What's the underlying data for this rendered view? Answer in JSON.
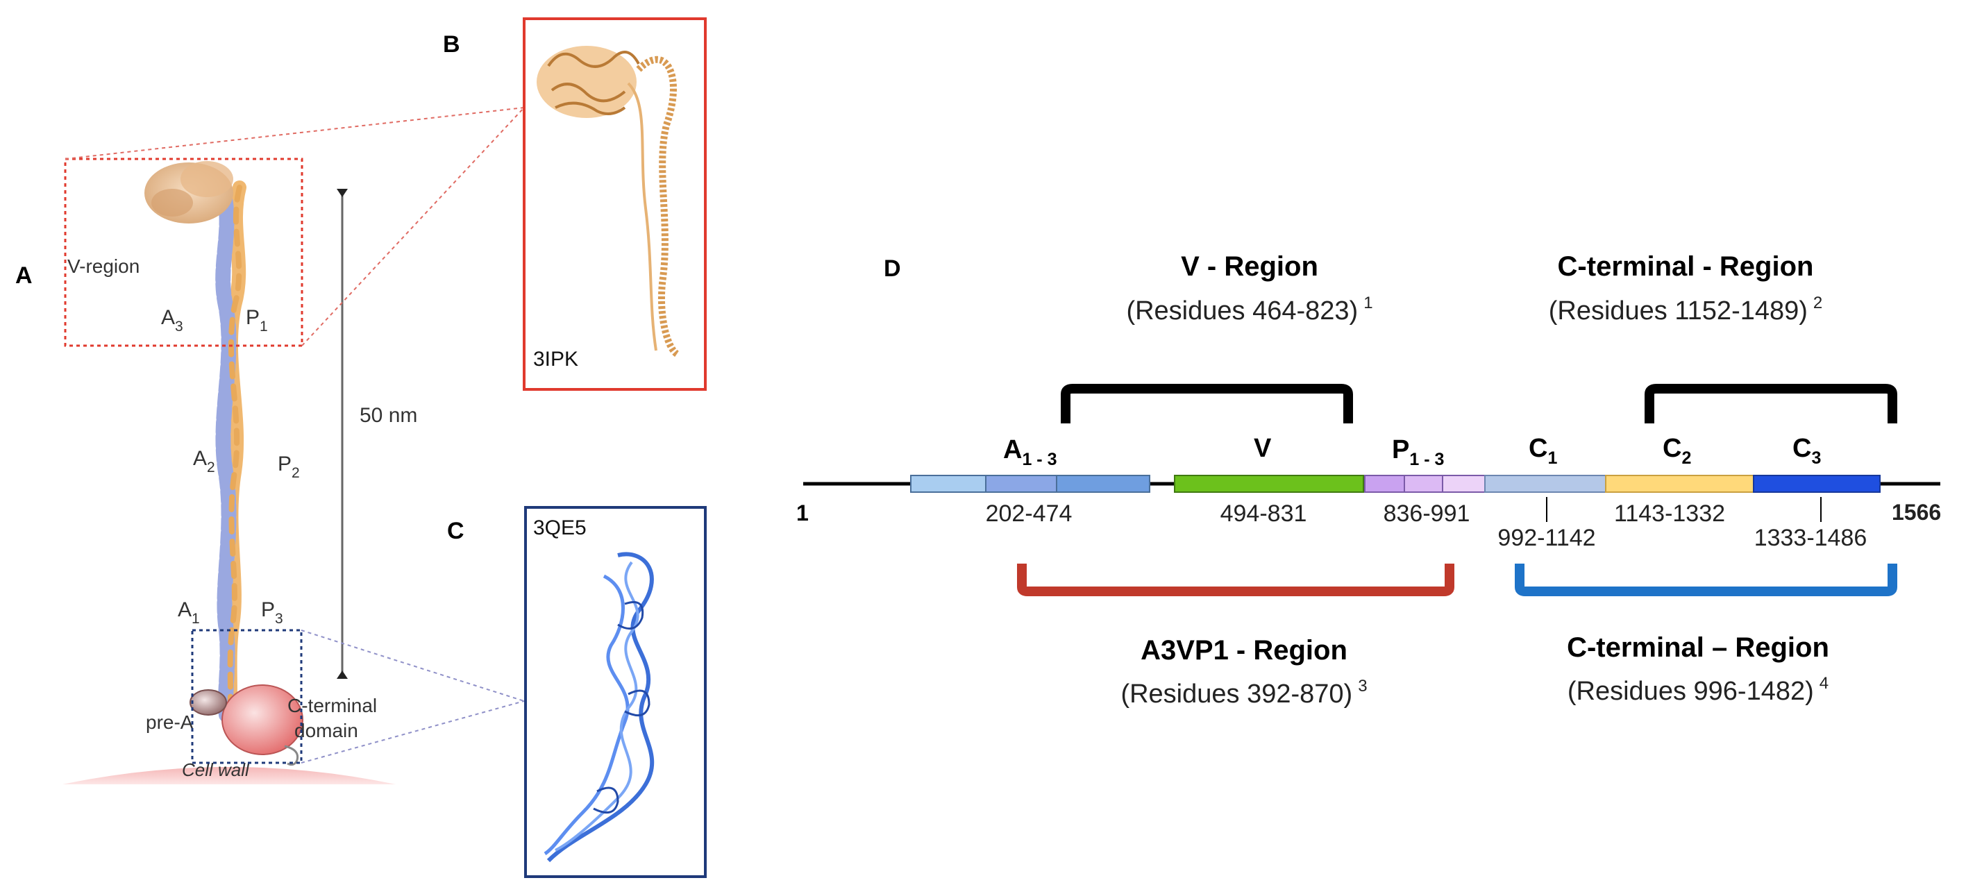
{
  "panel_labels": {
    "a": "A",
    "b": "B",
    "c": "C",
    "d": "D"
  },
  "panel_a": {
    "v_region": "V-region",
    "a3": "A",
    "a3_sub": "3",
    "p1": "P",
    "p1_sub": "1",
    "a2": "A",
    "a2_sub": "2",
    "p2": "P",
    "p2_sub": "2",
    "a1": "A",
    "a1_sub": "1",
    "p3": "P",
    "p3_sub": "3",
    "scale": "50 nm",
    "pre_a": "pre-A",
    "c_terminal_1": "C-terminal",
    "c_terminal_2": "domain",
    "cell_wall": "Cell wall"
  },
  "panel_b": {
    "pdb": "3IPK"
  },
  "panel_c": {
    "pdb": "3QE5"
  },
  "panel_d": {
    "start": "1",
    "end": "1566",
    "domains": {
      "a": {
        "label": "A",
        "sub": "1 - 3",
        "range": "202-474"
      },
      "v": {
        "label": "V",
        "range": "494-831"
      },
      "p": {
        "label": "P",
        "sub": "1  - 3",
        "range": "836-991"
      },
      "c1": {
        "label": "C",
        "sub": "1",
        "range": "992-1142"
      },
      "c2": {
        "label": "C",
        "sub": "2",
        "range": "1143-1332"
      },
      "c3": {
        "label": "C",
        "sub": "3",
        "range": "1333-1486"
      }
    },
    "top_left": {
      "title": "V - Region",
      "residues": "(Residues 464-823)",
      "ref": "1"
    },
    "top_right": {
      "title": "C-terminal - Region",
      "residues": "(Residues 1152-1489)",
      "ref": "2"
    },
    "bottom_left": {
      "title": "A3VP1 - Region",
      "residues": "(Residues 392-870)",
      "ref": "3"
    },
    "bottom_right": {
      "title": "C-terminal – Region",
      "residues": "(Residues 996-1482)",
      "ref": "4"
    }
  },
  "colors": {
    "red_frame": "#e03a2e",
    "blue_frame": "#1f3a7a",
    "tan": "#f0b870",
    "lavender": "#9aa8e0",
    "bracket_red": "#c0392b",
    "bracket_blue": "#1e73c8",
    "v_green": "#6cc11c",
    "c2_yellow": "#ffd97a",
    "c3_blue": "#1f4fe0"
  }
}
